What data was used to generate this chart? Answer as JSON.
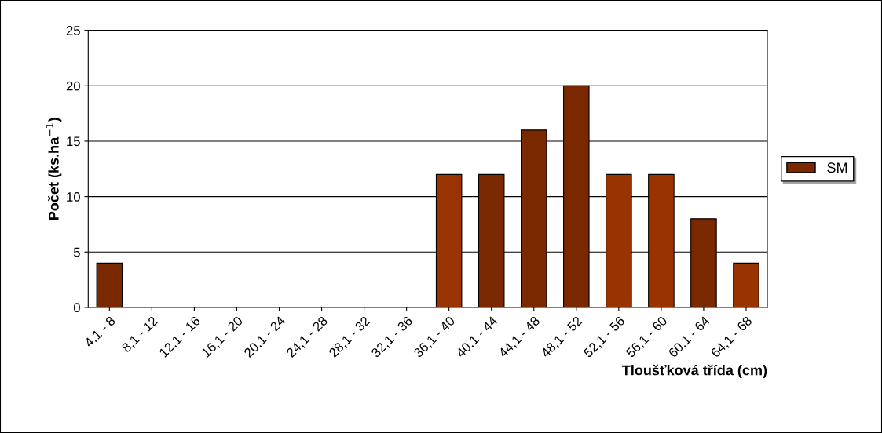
{
  "chart_data": {
    "type": "bar",
    "xlabel": "Tloušťková třída (cm)",
    "ylabel": "Počet (ks.ha$^{−1}$)",
    "categories": [
      "4,1 - 8",
      "8,1 - 12",
      "12,1 - 16",
      "16,1 - 20",
      "20,1 - 24",
      "24,1 - 28",
      "28,1 - 32",
      "32,1 - 36",
      "36,1 - 40",
      "40,1 - 44",
      "44,1 - 48",
      "48,1 - 52",
      "52,1 - 56",
      "56,1 - 60",
      "60,1 - 64",
      "64,1 - 68"
    ],
    "series": [
      {
        "name": "SM",
        "color": "#7a2800",
        "values": [
          4,
          0,
          0,
          0,
          0,
          0,
          0,
          0,
          12,
          12,
          16,
          20,
          12,
          12,
          8,
          4
        ],
        "colors": [
          "#7a2800",
          "#7a2800",
          "#7a2800",
          "#7a2800",
          "#7a2800",
          "#7a2800",
          "#7a2800",
          "#7a2800",
          "#993300",
          "#7a2800",
          "#7a2800",
          "#7a2800",
          "#993300",
          "#993300",
          "#7a2800",
          "#993300"
        ]
      }
    ],
    "ylim": [
      0,
      25
    ],
    "yticks": [
      0,
      5,
      10,
      15,
      20,
      25
    ],
    "grid": "y",
    "legend": "right"
  }
}
